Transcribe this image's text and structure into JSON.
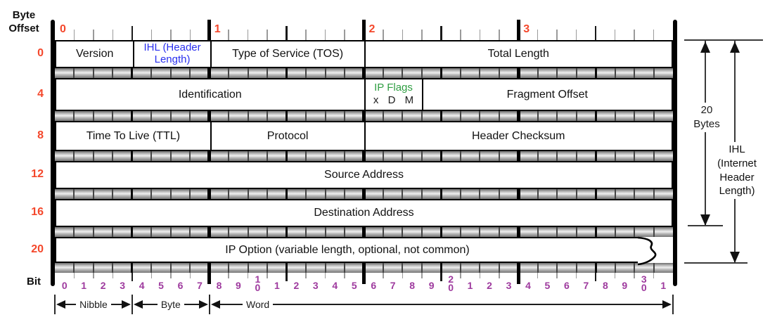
{
  "left_axis": {
    "label": "Byte Offset",
    "row_offsets": [
      "0",
      "4",
      "8",
      "12",
      "16",
      "20"
    ]
  },
  "top_axis": {
    "byte_labels": [
      "0",
      "1",
      "2",
      "3"
    ]
  },
  "bottom_axis": {
    "label": "Bit",
    "bit_labels": [
      "0",
      "1",
      "2",
      "3",
      "4",
      "5",
      "6",
      "7",
      "8",
      "9",
      "10",
      "1",
      "2",
      "3",
      "4",
      "5",
      "6",
      "7",
      "8",
      "9",
      "20",
      "1",
      "2",
      "3",
      "4",
      "5",
      "6",
      "7",
      "8",
      "9",
      "30",
      "1"
    ]
  },
  "scale_bar": [
    {
      "label": "Nibble",
      "from_bit": 0,
      "to_bit": 4
    },
    {
      "label": "Byte",
      "from_bit": 4,
      "to_bit": 8
    },
    {
      "label": "Word",
      "from_bit": 8,
      "to_bit": 32
    }
  ],
  "rows": [
    {
      "offset": "0",
      "fields": [
        {
          "label": "Version",
          "bits": 4
        },
        {
          "label": "IHL (Header Length)",
          "bits": 4,
          "color": "field_blue",
          "small": true
        },
        {
          "label": "Type of Service (TOS)",
          "bits": 8
        },
        {
          "label": "Total Length",
          "bits": 16
        }
      ]
    },
    {
      "offset": "4",
      "fields": [
        {
          "label": "Identification",
          "bits": 16
        },
        {
          "label": "IP Flags",
          "sub": "x D M",
          "bits": 3,
          "color": "flags_green",
          "small": true
        },
        {
          "label": "Fragment Offset",
          "bits": 13
        }
      ]
    },
    {
      "offset": "8",
      "fields": [
        {
          "label": "Time To Live (TTL)",
          "bits": 8
        },
        {
          "label": "Protocol",
          "bits": 8
        },
        {
          "label": "Header Checksum",
          "bits": 16
        }
      ]
    },
    {
      "offset": "12",
      "fields": [
        {
          "label": "Source Address",
          "bits": 32
        }
      ]
    },
    {
      "offset": "16",
      "fields": [
        {
          "label": "Destination Address",
          "bits": 32
        }
      ]
    },
    {
      "offset": "20",
      "torn": true,
      "fields": [
        {
          "label": "IP Option (variable length, optional, not common)",
          "bits": 32
        }
      ]
    }
  ],
  "annotations": {
    "total_size_note": "20 Bytes",
    "ihl_note": "IHL (Internet Header Length)"
  },
  "colors": {
    "offset_red": "#f4472b",
    "field_blue": "#2a30ef",
    "flags_green": "#2f9e42",
    "bit_purple": "#9e3a9e"
  }
}
